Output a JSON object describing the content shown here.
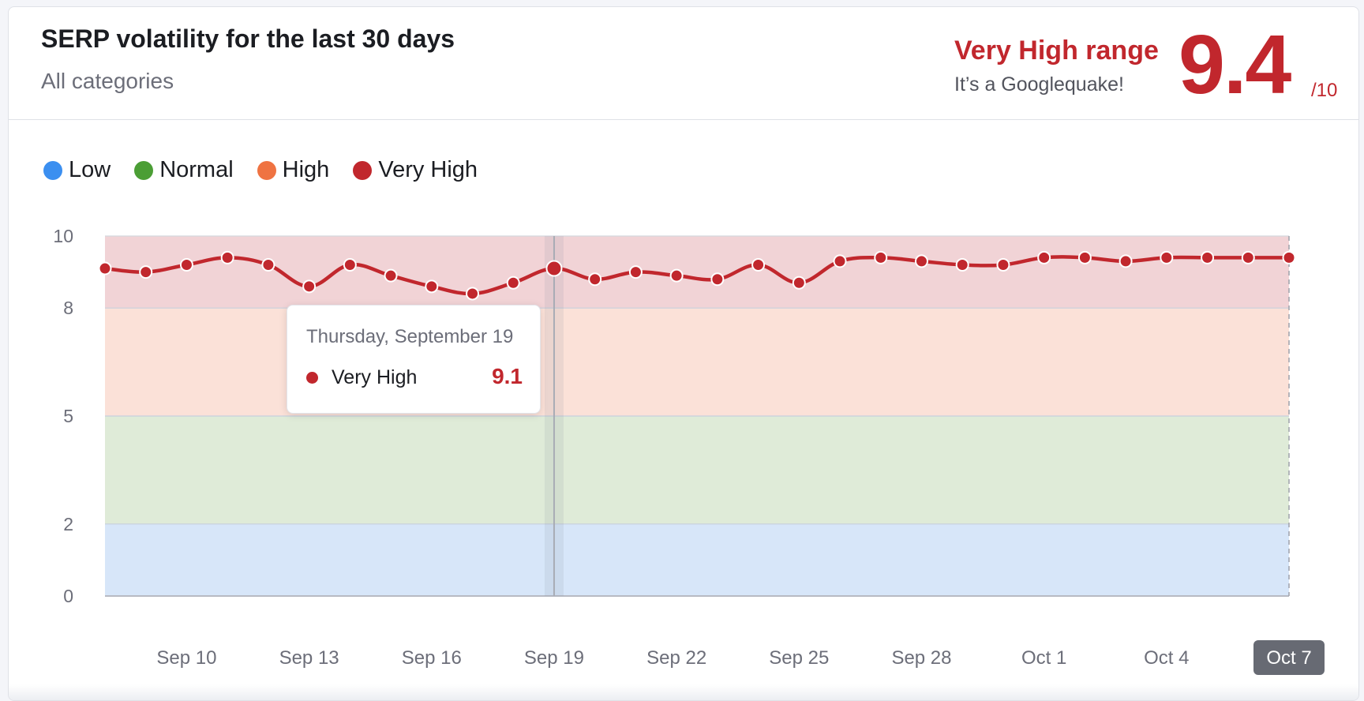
{
  "header": {
    "title": "SERP volatility for the last 30 days",
    "subtitle": "All categories",
    "range_label": "Very High range",
    "range_description": "It’s a Googlequake!",
    "score": "9.4",
    "score_max": "/10"
  },
  "legend": [
    {
      "label": "Low",
      "color": "#3b8ff0"
    },
    {
      "label": "Normal",
      "color": "#4b9e35"
    },
    {
      "label": "High",
      "color": "#ef7342"
    },
    {
      "label": "Very High",
      "color": "#c1272d"
    }
  ],
  "tooltip": {
    "date": "Thursday, September 19",
    "series": "Very High",
    "value": "9.1",
    "index": 11
  },
  "colors": {
    "line": "#c1272d",
    "band_low": "#d7e6f9",
    "band_normal": "#dfebd8",
    "band_high": "#fbe1d8",
    "band_very_high": "#f1d3d6",
    "axis_text": "#6c6e79",
    "active_tick_bg": "#676a73"
  },
  "chart_data": {
    "type": "line",
    "title": "SERP volatility for the last 30 days",
    "ylim": [
      0,
      10
    ],
    "y_ticks": [
      0,
      2,
      5,
      8,
      10
    ],
    "bands": [
      {
        "name": "Low",
        "from": 0,
        "to": 2
      },
      {
        "name": "Normal",
        "from": 2,
        "to": 5
      },
      {
        "name": "High",
        "from": 5,
        "to": 8
      },
      {
        "name": "Very High",
        "from": 8,
        "to": 10
      }
    ],
    "x": [
      "Sep 8",
      "Sep 9",
      "Sep 10",
      "Sep 11",
      "Sep 12",
      "Sep 13",
      "Sep 14",
      "Sep 15",
      "Sep 16",
      "Sep 17",
      "Sep 18",
      "Sep 19",
      "Sep 20",
      "Sep 21",
      "Sep 22",
      "Sep 23",
      "Sep 24",
      "Sep 25",
      "Sep 26",
      "Sep 27",
      "Sep 28",
      "Sep 29",
      "Sep 30",
      "Oct 1",
      "Oct 2",
      "Oct 3",
      "Oct 4",
      "Oct 5",
      "Oct 6",
      "Oct 7"
    ],
    "x_tick_labels": [
      "Sep 10",
      "Sep 13",
      "Sep 16",
      "Sep 19",
      "Sep 22",
      "Sep 25",
      "Sep 28",
      "Oct 1",
      "Oct 4",
      "Oct 7"
    ],
    "active_tick": "Oct 7",
    "series": [
      {
        "name": "Very High",
        "values": [
          9.1,
          9.0,
          9.2,
          9.4,
          9.2,
          8.6,
          9.2,
          8.9,
          8.6,
          8.4,
          8.7,
          9.1,
          8.8,
          9.0,
          8.9,
          8.8,
          9.2,
          8.7,
          9.3,
          9.4,
          9.3,
          9.2,
          9.2,
          9.4,
          9.4,
          9.3,
          9.4,
          9.4,
          9.4,
          9.4
        ]
      }
    ]
  }
}
